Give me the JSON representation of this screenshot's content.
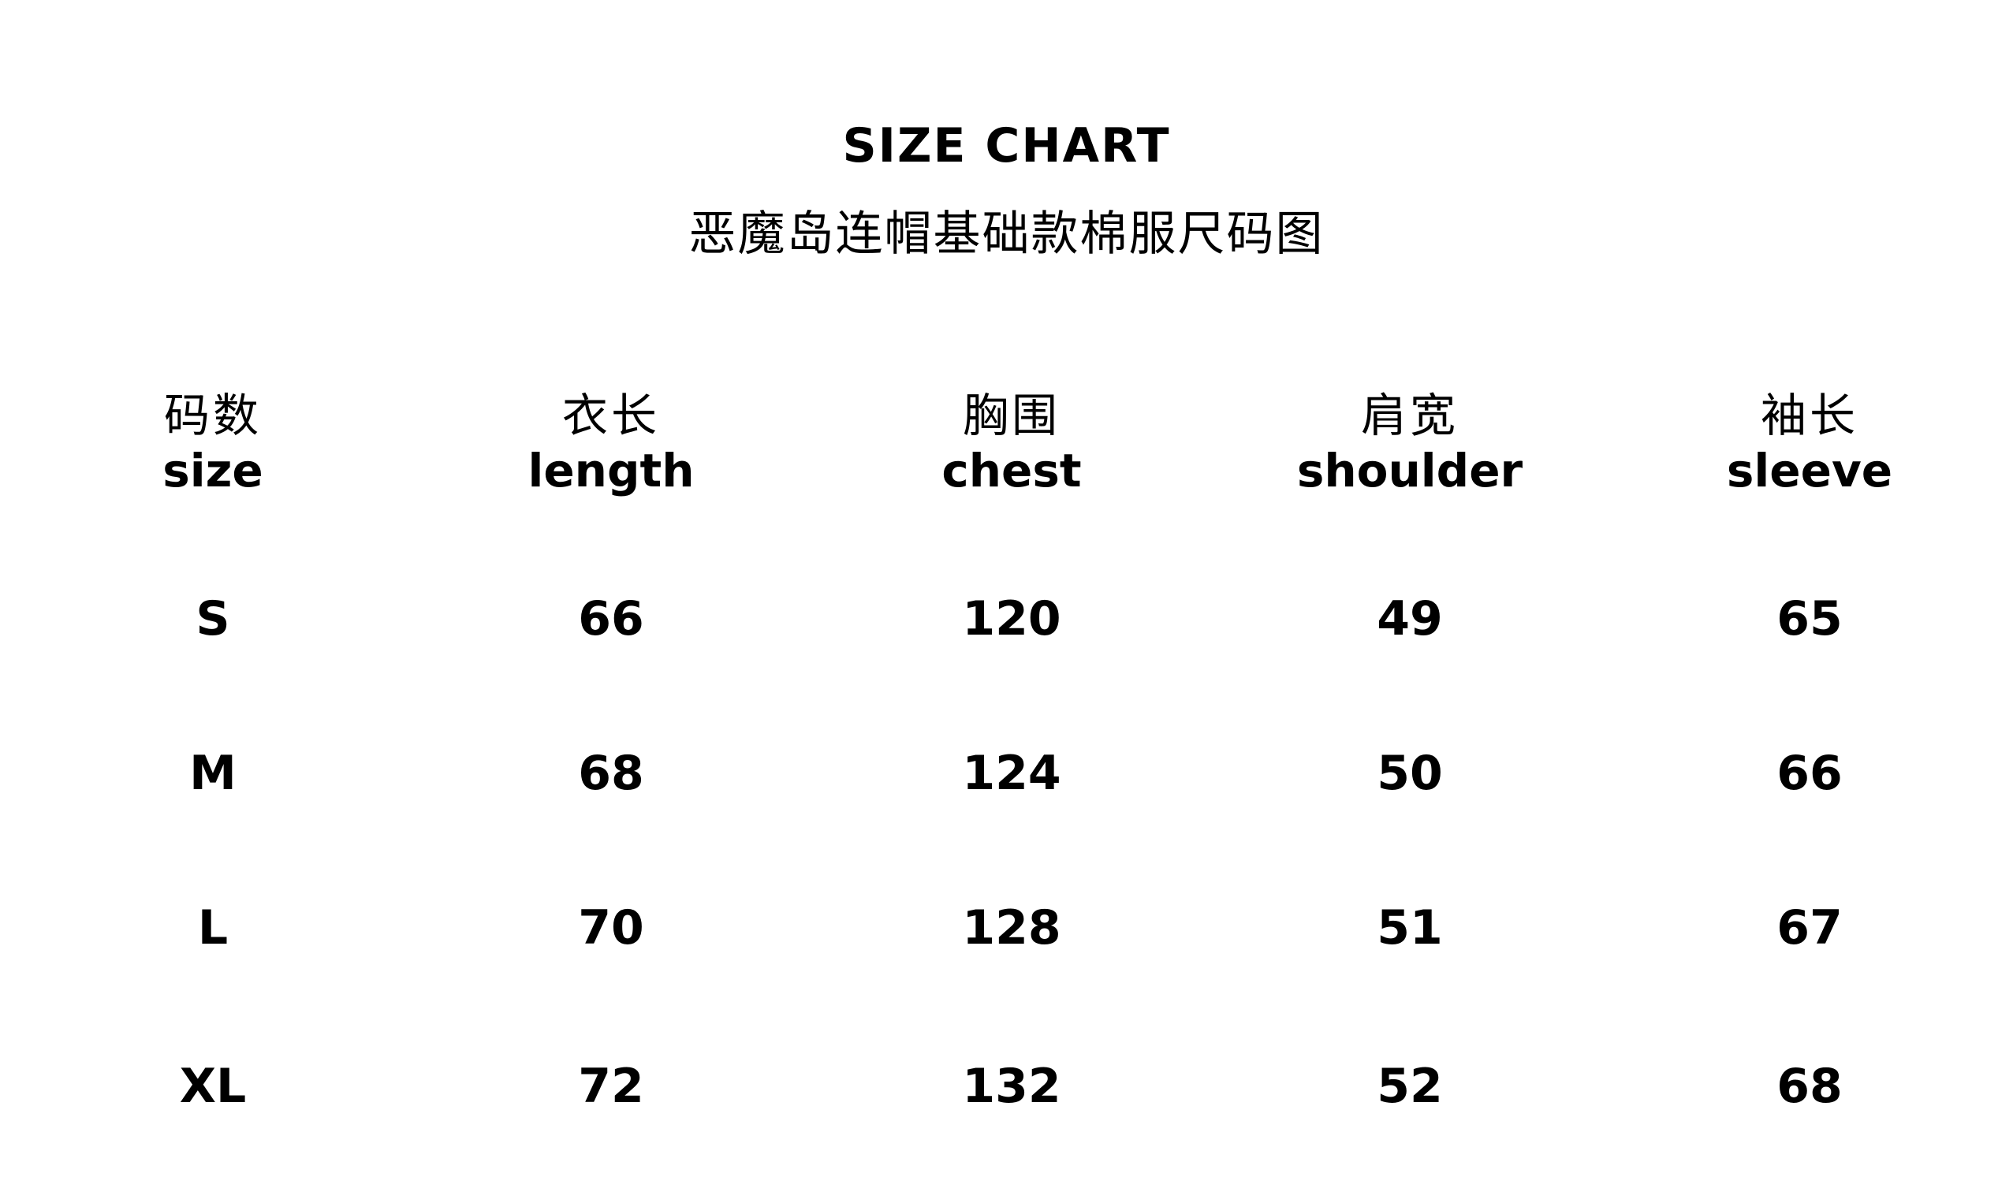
{
  "title": "SIZE CHART",
  "subtitle": "恶魔岛连帽基础款棉服尺码图",
  "chart_data": {
    "type": "table",
    "columns": [
      {
        "zh": "码数",
        "en": "size"
      },
      {
        "zh": "衣长",
        "en": "length"
      },
      {
        "zh": "胸围",
        "en": "chest"
      },
      {
        "zh": "肩宽",
        "en": "shoulder"
      },
      {
        "zh": "袖长",
        "en": "sleeve"
      }
    ],
    "rows": [
      [
        "S",
        "66",
        "120",
        "49",
        "65"
      ],
      [
        "M",
        "68",
        "124",
        "50",
        "66"
      ],
      [
        "L",
        "70",
        "128",
        "51",
        "67"
      ],
      [
        "XL",
        "72",
        "132",
        "52",
        "68"
      ]
    ]
  }
}
